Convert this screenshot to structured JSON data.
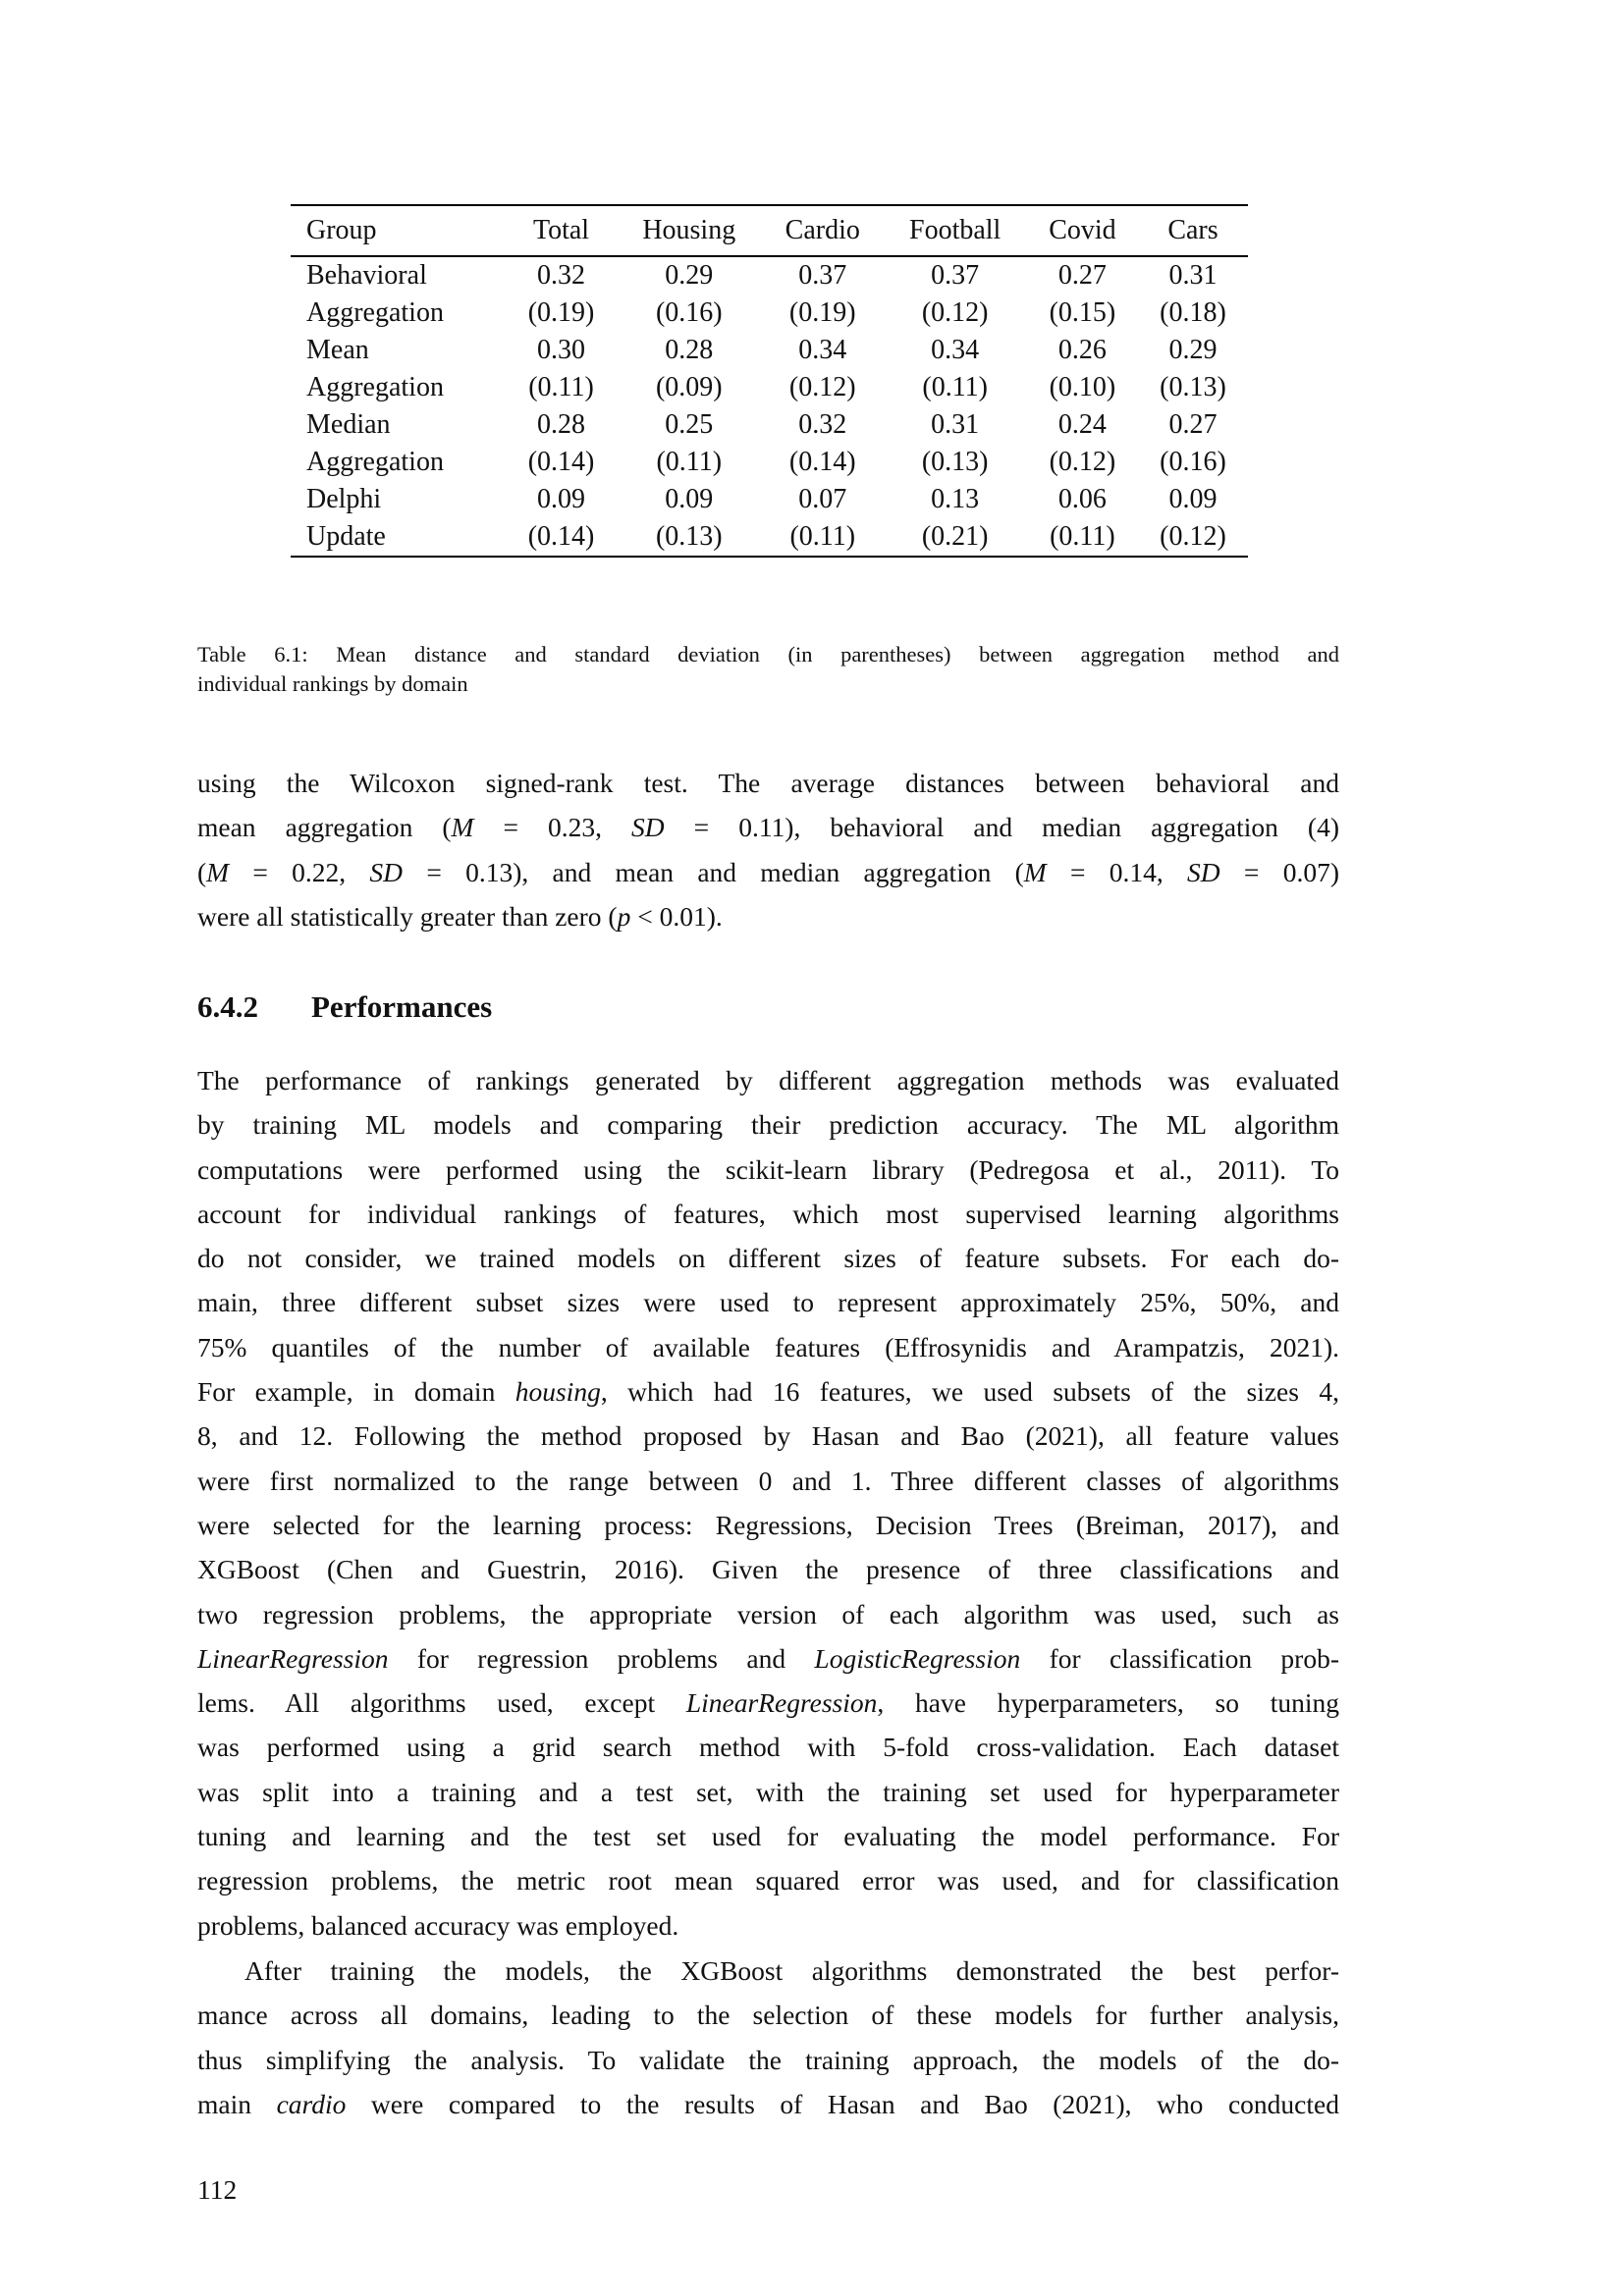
{
  "table": {
    "columns": [
      "Group",
      "Total",
      "Housing",
      "Cardio",
      "Football",
      "Covid",
      "Cars"
    ],
    "rows": [
      {
        "group": [
          "Behavioral",
          "Aggregation"
        ],
        "means": [
          "0.32",
          "0.29",
          "0.37",
          "0.37",
          "0.27",
          "0.31"
        ],
        "sds": [
          "(0.19)",
          "(0.16)",
          "(0.19)",
          "(0.12)",
          "(0.15)",
          "(0.18)"
        ]
      },
      {
        "group": [
          "Mean",
          "Aggregation"
        ],
        "means": [
          "0.30",
          "0.28",
          "0.34",
          "0.34",
          "0.26",
          "0.29"
        ],
        "sds": [
          "(0.11)",
          "(0.09)",
          "(0.12)",
          "(0.11)",
          "(0.10)",
          "(0.13)"
        ]
      },
      {
        "group": [
          "Median",
          "Aggregation"
        ],
        "means": [
          "0.28",
          "0.25",
          "0.32",
          "0.31",
          "0.24",
          "0.27"
        ],
        "sds": [
          "(0.14)",
          "(0.11)",
          "(0.14)",
          "(0.13)",
          "(0.12)",
          "(0.16)"
        ]
      },
      {
        "group": [
          "Delphi",
          "Update"
        ],
        "means": [
          "0.09",
          "0.09",
          "0.07",
          "0.13",
          "0.06",
          "0.09"
        ],
        "sds": [
          "(0.14)",
          "(0.13)",
          "(0.11)",
          "(0.21)",
          "(0.11)",
          "(0.12)"
        ]
      }
    ]
  },
  "caption": {
    "lines": [
      [
        {
          "text": "Table 6.1: Mean distance and standard deviation (in parentheses) between aggregation method and"
        }
      ],
      [
        {
          "text": "individual rankings by domain"
        }
      ]
    ]
  },
  "paragraph_intro": {
    "lines": [
      [
        {
          "text": "using the Wilcoxon signed-rank test.  The average distances between behavioral and"
        }
      ],
      [
        {
          "text": "mean aggregation ("
        },
        {
          "text": "M",
          "italic": true
        },
        {
          "text": " = 0.23, "
        },
        {
          "text": "SD",
          "italic": true
        },
        {
          "text": " = 0.11), behavioral and median aggregation (4)"
        }
      ],
      [
        {
          "text": "("
        },
        {
          "text": "M",
          "italic": true
        },
        {
          "text": " = 0.22, "
        },
        {
          "text": "SD",
          "italic": true
        },
        {
          "text": " = 0.13), and mean and median aggregation ("
        },
        {
          "text": "M",
          "italic": true
        },
        {
          "text": " = 0.14, "
        },
        {
          "text": "SD",
          "italic": true
        },
        {
          "text": " = 0.07)"
        }
      ],
      [
        {
          "text": "were all statistically greater than zero ("
        },
        {
          "text": "p",
          "italic": true
        },
        {
          "text": " < 0.01)."
        }
      ]
    ]
  },
  "section": {
    "number": "6.4.2",
    "title": "Performances"
  },
  "paragraph_main": {
    "lines": [
      [
        {
          "text": "The performance of rankings generated by different aggregation methods was evaluated"
        }
      ],
      [
        {
          "text": "by training ML models and comparing their prediction accuracy.  The ML algorithm"
        }
      ],
      [
        {
          "text": "computations were performed using the scikit-learn library (Pedregosa et al., 2011).  To"
        }
      ],
      [
        {
          "text": "account for individual rankings of features, which most supervised learning algorithms"
        }
      ],
      [
        {
          "text": "do not consider, we trained models on different sizes of feature subsets.  For each do-"
        }
      ],
      [
        {
          "text": "main, three different subset sizes were used to represent approximately 25%, 50%, and"
        }
      ],
      [
        {
          "text": "75% quantiles of the number of available features (Effrosynidis and Arampatzis, 2021)."
        }
      ],
      [
        {
          "text": "For example, in domain "
        },
        {
          "text": "housing",
          "italic": true
        },
        {
          "text": ", which had 16 features, we used subsets of the sizes 4,"
        }
      ],
      [
        {
          "text": "8, and 12.  Following the method proposed by Hasan and Bao (2021), all feature values"
        }
      ],
      [
        {
          "text": "were first normalized to the range between 0 and 1.  Three different classes of algorithms"
        }
      ],
      [
        {
          "text": "were selected for the learning process: Regressions, Decision Trees (Breiman, 2017), and"
        }
      ],
      [
        {
          "text": "XGBoost (Chen and Guestrin, 2016).  Given the presence of three classifications and"
        }
      ],
      [
        {
          "text": "two regression problems, the appropriate version of each algorithm was used, such as"
        }
      ],
      [
        {
          "text": "LinearRegression",
          "italic": true
        },
        {
          "text": " for regression problems and "
        },
        {
          "text": "LogisticRegression",
          "italic": true
        },
        {
          "text": " for classification prob-"
        }
      ],
      [
        {
          "text": "lems.  All algorithms used, except "
        },
        {
          "text": "LinearRegression",
          "italic": true
        },
        {
          "text": ", have hyperparameters, so tuning"
        }
      ],
      [
        {
          "text": "was performed using a grid search method with 5-fold cross-validation.  Each dataset"
        }
      ],
      [
        {
          "text": "was split into a training and a test set, with the training set used for hyperparameter"
        }
      ],
      [
        {
          "text": "tuning and learning and the test set used for evaluating the model performance.  For"
        }
      ],
      [
        {
          "text": "regression problems, the metric root mean squared error was used, and for classification"
        }
      ],
      [
        {
          "text": "problems, balanced accuracy was employed."
        }
      ]
    ]
  },
  "paragraph_next": {
    "lines": [
      [
        {
          "text": "After training the models, the XGBoost algorithms demonstrated the best perfor-"
        }
      ],
      [
        {
          "text": "mance across all domains, leading to the selection of these models for further analysis,"
        }
      ],
      [
        {
          "text": "thus simplifying the analysis.  To validate the training approach, the models of the do-"
        }
      ],
      [
        {
          "text": "main "
        },
        {
          "text": "cardio",
          "italic": true
        },
        {
          "text": " were compared to the results of Hasan and Bao (2021), who conducted"
        }
      ]
    ]
  },
  "page_number": "112"
}
